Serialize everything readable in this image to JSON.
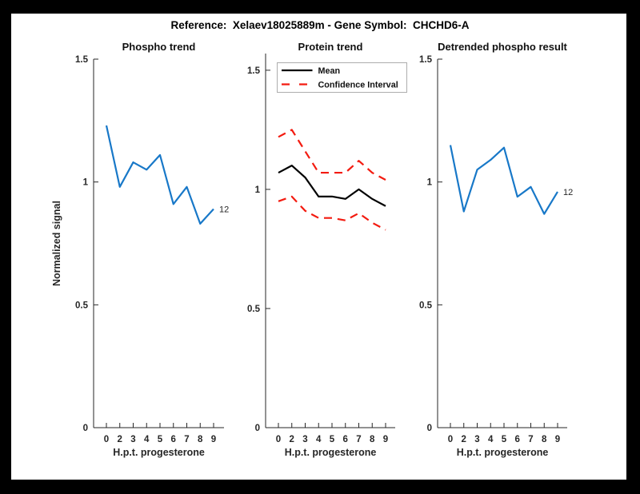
{
  "figure": {
    "title": "Reference:  Xelaev18025889m - Gene Symbol:  CHCHD6-A",
    "background": "#000000",
    "canvas": "#ffffff"
  },
  "colors": {
    "line_blue": "#1878c8",
    "line_red": "#f31b10",
    "line_black": "#000000",
    "axis": "#262626",
    "legend_border": "#999999"
  },
  "chart_data": [
    {
      "type": "line",
      "title": "Phospho trend",
      "xlabel": "H.p.t. progesterone",
      "ylabel": "Normalized signal",
      "categories": [
        "0",
        "2",
        "3",
        "4",
        "5",
        "6",
        "7",
        "8",
        "9"
      ],
      "yticks": [
        0,
        0.5,
        1,
        1.5
      ],
      "ytick_labels": [
        "0",
        "0.5",
        "1",
        "1.5"
      ],
      "ylim": [
        0,
        1.5
      ],
      "grid": false,
      "series": [
        {
          "name": "phospho-trend",
          "color_key": "line_blue",
          "style": "solid",
          "values": [
            1.23,
            0.98,
            1.08,
            1.05,
            1.11,
            0.91,
            0.98,
            0.83,
            0.89
          ]
        }
      ],
      "end_label": "12"
    },
    {
      "type": "line",
      "title": "Protein trend",
      "xlabel": "H.p.t. progesterone",
      "ylabel": "",
      "categories": [
        "0",
        "2",
        "3",
        "4",
        "5",
        "6",
        "7",
        "8",
        "9"
      ],
      "yticks": [
        0,
        0.5,
        1,
        1.5
      ],
      "ytick_labels": [
        "0",
        "0.5",
        "1",
        "1.5"
      ],
      "ylim": [
        0,
        1.57
      ],
      "grid": false,
      "series": [
        {
          "name": "mean",
          "color_key": "line_black",
          "style": "solid",
          "values": [
            1.07,
            1.1,
            1.05,
            0.97,
            0.97,
            0.96,
            1.0,
            0.96,
            0.93
          ]
        },
        {
          "name": "confidence-interval-upper",
          "color_key": "line_red",
          "style": "dashed",
          "values": [
            1.22,
            1.25,
            1.16,
            1.07,
            1.07,
            1.07,
            1.12,
            1.07,
            1.04
          ]
        },
        {
          "name": "confidence-interval-lower",
          "color_key": "line_red",
          "style": "dashed",
          "values": [
            0.95,
            0.97,
            0.91,
            0.88,
            0.88,
            0.87,
            0.9,
            0.86,
            0.83
          ]
        }
      ],
      "legend": {
        "position": "northwest",
        "entries": [
          {
            "label": "Mean",
            "color_key": "line_black",
            "style": "solid"
          },
          {
            "label": "Confidence Interval",
            "color_key": "line_red",
            "style": "dashed"
          }
        ]
      },
      "end_label": ""
    },
    {
      "type": "line",
      "title": "Detrended phospho result",
      "xlabel": "H.p.t. progesterone",
      "ylabel": "",
      "categories": [
        "0",
        "2",
        "3",
        "4",
        "5",
        "6",
        "7",
        "8",
        "9"
      ],
      "yticks": [
        0,
        0.5,
        1,
        1.5
      ],
      "ytick_labels": [
        "0",
        "0.5",
        "1",
        "1.5"
      ],
      "ylim": [
        0,
        1.5
      ],
      "grid": false,
      "series": [
        {
          "name": "detrended-phospho",
          "color_key": "line_blue",
          "style": "solid",
          "values": [
            1.15,
            0.88,
            1.05,
            1.09,
            1.14,
            0.94,
            0.98,
            0.87,
            0.96
          ]
        }
      ],
      "end_label": "12"
    }
  ]
}
